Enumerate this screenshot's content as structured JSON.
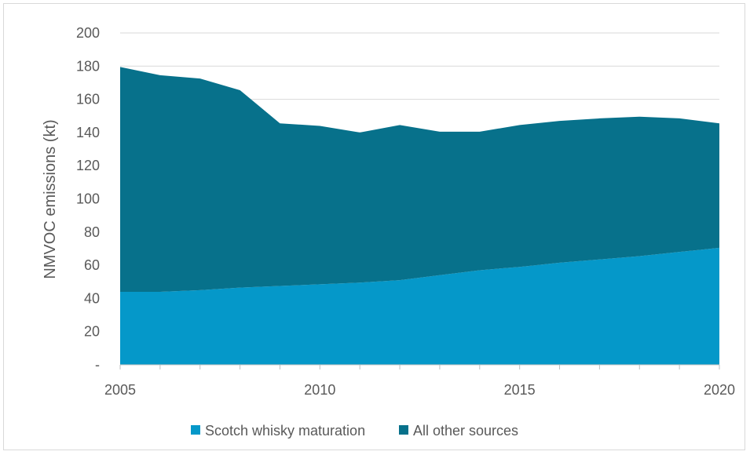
{
  "chart_data": {
    "type": "area",
    "stacked": true,
    "ylabel": "NMVOC emissions (kt)",
    "xlabel": "",
    "ylim": [
      0,
      200
    ],
    "xlim": [
      2005,
      2020
    ],
    "yticks": [
      0,
      20,
      40,
      60,
      80,
      100,
      120,
      140,
      160,
      180,
      200
    ],
    "ytick_labels": [
      "-",
      "20",
      "40",
      "60",
      "80",
      "100",
      "120",
      "140",
      "160",
      "180",
      "200"
    ],
    "xticks": [
      2005,
      2010,
      2015,
      2020
    ],
    "xtick_labels": [
      "2005",
      "2010",
      "2015",
      "2020"
    ],
    "grid": "horizontal",
    "legend_position": "bottom",
    "x": [
      2005,
      2006,
      2007,
      2008,
      2009,
      2010,
      2011,
      2012,
      2013,
      2014,
      2015,
      2016,
      2017,
      2018,
      2019,
      2020
    ],
    "series": [
      {
        "name": "Scotch whisky maturation",
        "color": "#0598c9",
        "values": [
          44,
          44,
          45,
          46.5,
          47.5,
          48.5,
          49.5,
          51,
          54,
          57,
          59,
          61.5,
          63.5,
          65.5,
          68,
          70.5
        ]
      },
      {
        "name": "All other sources",
        "color": "#07718b",
        "values": [
          135.5,
          130.5,
          127.5,
          119,
          98,
          95.5,
          90.5,
          93.5,
          86.5,
          83.5,
          85.5,
          85.5,
          85,
          84,
          80.5,
          75
        ]
      }
    ]
  }
}
